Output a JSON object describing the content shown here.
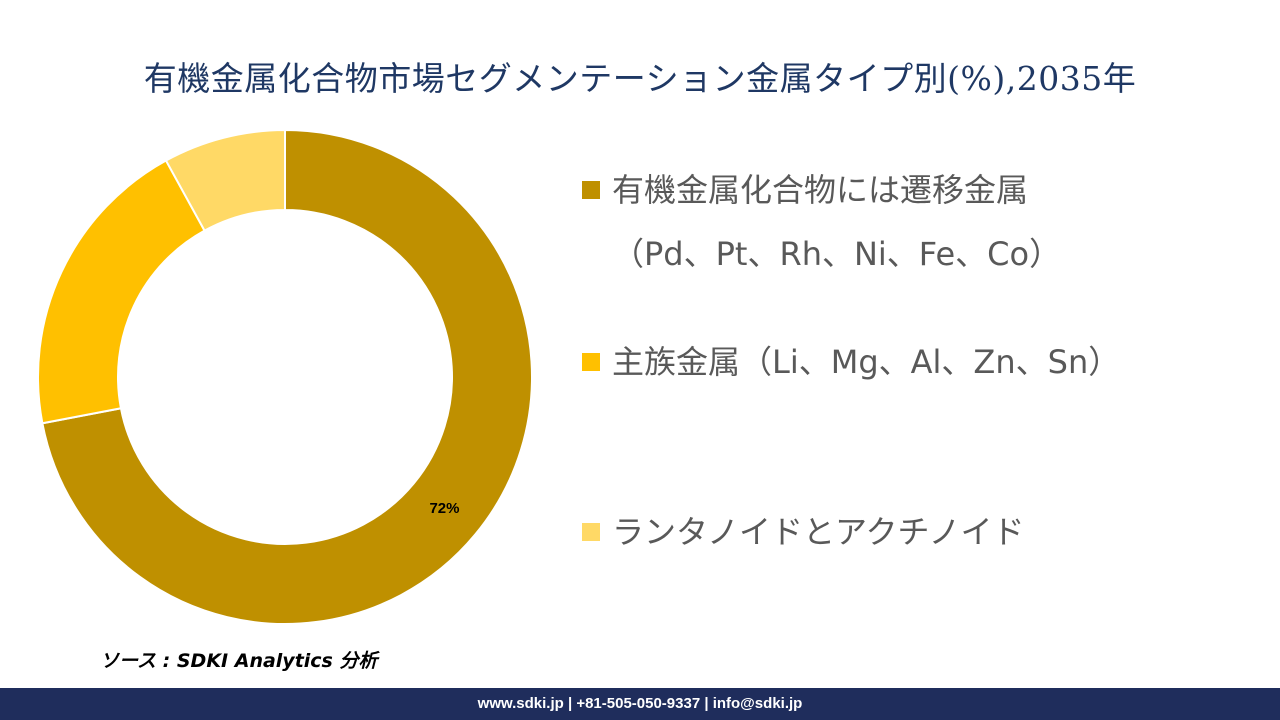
{
  "title": "有機金属化合物市場セグメンテーション金属タイプ別(%),2035年",
  "chart_data": {
    "type": "pie",
    "donut": true,
    "categories": [
      "有機金属化合物には遷移金属\n（Pd、Pt、Rh、Ni、Fe、Co）",
      "主族金属（Li、Mg、Al、Zn、Sn）",
      "ランタノイドとアクチノイド"
    ],
    "values": [
      72,
      20,
      8
    ],
    "colors": [
      "#bf9000",
      "#ffc000",
      "#ffd966"
    ],
    "data_labels": [
      "72%",
      "",
      ""
    ],
    "legend_position": "right"
  },
  "source": "ソース : SDKI Analytics 分析",
  "footer": "www.sdki.jp | +81-505-050-9337 | info@sdki.jp"
}
